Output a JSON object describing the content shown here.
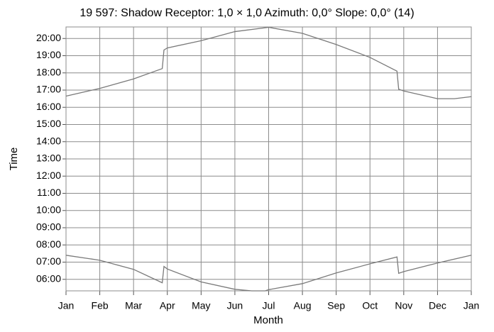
{
  "chart_data": {
    "type": "line",
    "title": "19 597: Shadow Receptor: 1,0 × 1,0  Azimuth: 0,0°  Slope: 0,0° (14)",
    "x_label": "Month",
    "y_label": "Time",
    "xlim": [
      0,
      12
    ],
    "ylim": [
      5.33,
      20.67
    ],
    "xticks": [
      {
        "value": 0,
        "label": "Jan"
      },
      {
        "value": 1,
        "label": "Feb"
      },
      {
        "value": 2,
        "label": "Mar"
      },
      {
        "value": 3,
        "label": "Apr"
      },
      {
        "value": 4,
        "label": "May"
      },
      {
        "value": 5,
        "label": "Jun"
      },
      {
        "value": 6,
        "label": "Jul"
      },
      {
        "value": 7,
        "label": "Aug"
      },
      {
        "value": 8,
        "label": "Sep"
      },
      {
        "value": 9,
        "label": "Oct"
      },
      {
        "value": 10,
        "label": "Nov"
      },
      {
        "value": 11,
        "label": "Dec"
      },
      {
        "value": 12,
        "label": "Jan"
      }
    ],
    "yticks": [
      {
        "value": 6,
        "label": "06:00"
      },
      {
        "value": 7,
        "label": "07:00"
      },
      {
        "value": 8,
        "label": "08:00"
      },
      {
        "value": 9,
        "label": "09:00"
      },
      {
        "value": 10,
        "label": "10:00"
      },
      {
        "value": 11,
        "label": "11:00"
      },
      {
        "value": 12,
        "label": "12:00"
      },
      {
        "value": 13,
        "label": "13:00"
      },
      {
        "value": 14,
        "label": "14:00"
      },
      {
        "value": 15,
        "label": "15:00"
      },
      {
        "value": 16,
        "label": "16:00"
      },
      {
        "value": 17,
        "label": "17:00"
      },
      {
        "value": 18,
        "label": "18:00"
      },
      {
        "value": 19,
        "label": "19:00"
      },
      {
        "value": 20,
        "label": "20:00"
      }
    ],
    "grid": true,
    "series": [
      {
        "color": "#7a7a7a",
        "x": [
          0,
          1,
          2,
          2.85,
          2.9,
          3,
          4,
          5,
          6,
          7,
          8,
          9,
          9.8,
          9.85,
          10,
          11,
          11.5,
          12
        ],
        "values": [
          16.65,
          17.1,
          17.65,
          18.25,
          19.33,
          19.45,
          19.87,
          20.4,
          20.65,
          20.3,
          19.65,
          18.9,
          18.1,
          17.05,
          16.95,
          16.5,
          16.5,
          16.62
        ]
      },
      {
        "color": "#7a7a7a",
        "x": [
          0,
          1,
          2,
          2.85,
          2.9,
          3,
          4,
          5,
          5.5,
          5.9,
          6,
          7,
          8,
          9,
          9.8,
          9.85,
          10,
          11,
          12
        ],
        "values": [
          7.4,
          7.11,
          6.58,
          5.8,
          6.75,
          6.6,
          5.85,
          5.42,
          5.33,
          5.33,
          5.4,
          5.75,
          6.37,
          6.9,
          7.3,
          6.35,
          6.45,
          6.95,
          7.4
        ]
      }
    ]
  }
}
